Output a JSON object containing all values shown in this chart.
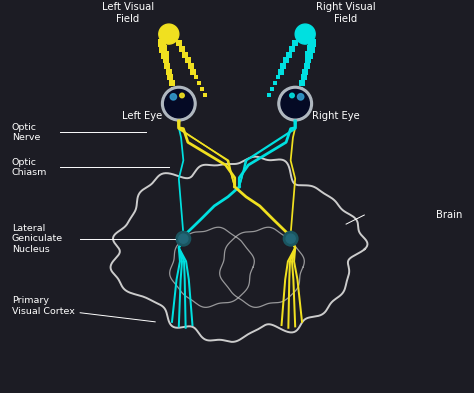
{
  "bg_color": "#1c1c24",
  "yellow": "#f0e020",
  "cyan": "#00e0e0",
  "white": "#ffffff",
  "brain_col": "#cccccc",
  "eye_outer": "#b0b8c0",
  "eye_inner": "#050a25",
  "lgn_outer": "#1a5560",
  "lgn_inner": "#226677",
  "labels": {
    "left_visual_field": "Left Visual\nField",
    "right_visual_field": "Right Visual\nField",
    "left_eye": "Left Eye",
    "right_eye": "Right Eye",
    "optic_nerve": "Optic\nNerve",
    "optic_chiasm": "Optic\nChiasm",
    "lateral_geniculate": "Lateral\nGeniculate\nNucleus",
    "primary_visual_cortex": "Primary\nVisual Cortex",
    "brain": "Brain"
  },
  "xlim": [
    0,
    10
  ],
  "ylim": [
    0,
    8.3
  ],
  "figsize": [
    4.74,
    3.93
  ],
  "dpi": 100
}
